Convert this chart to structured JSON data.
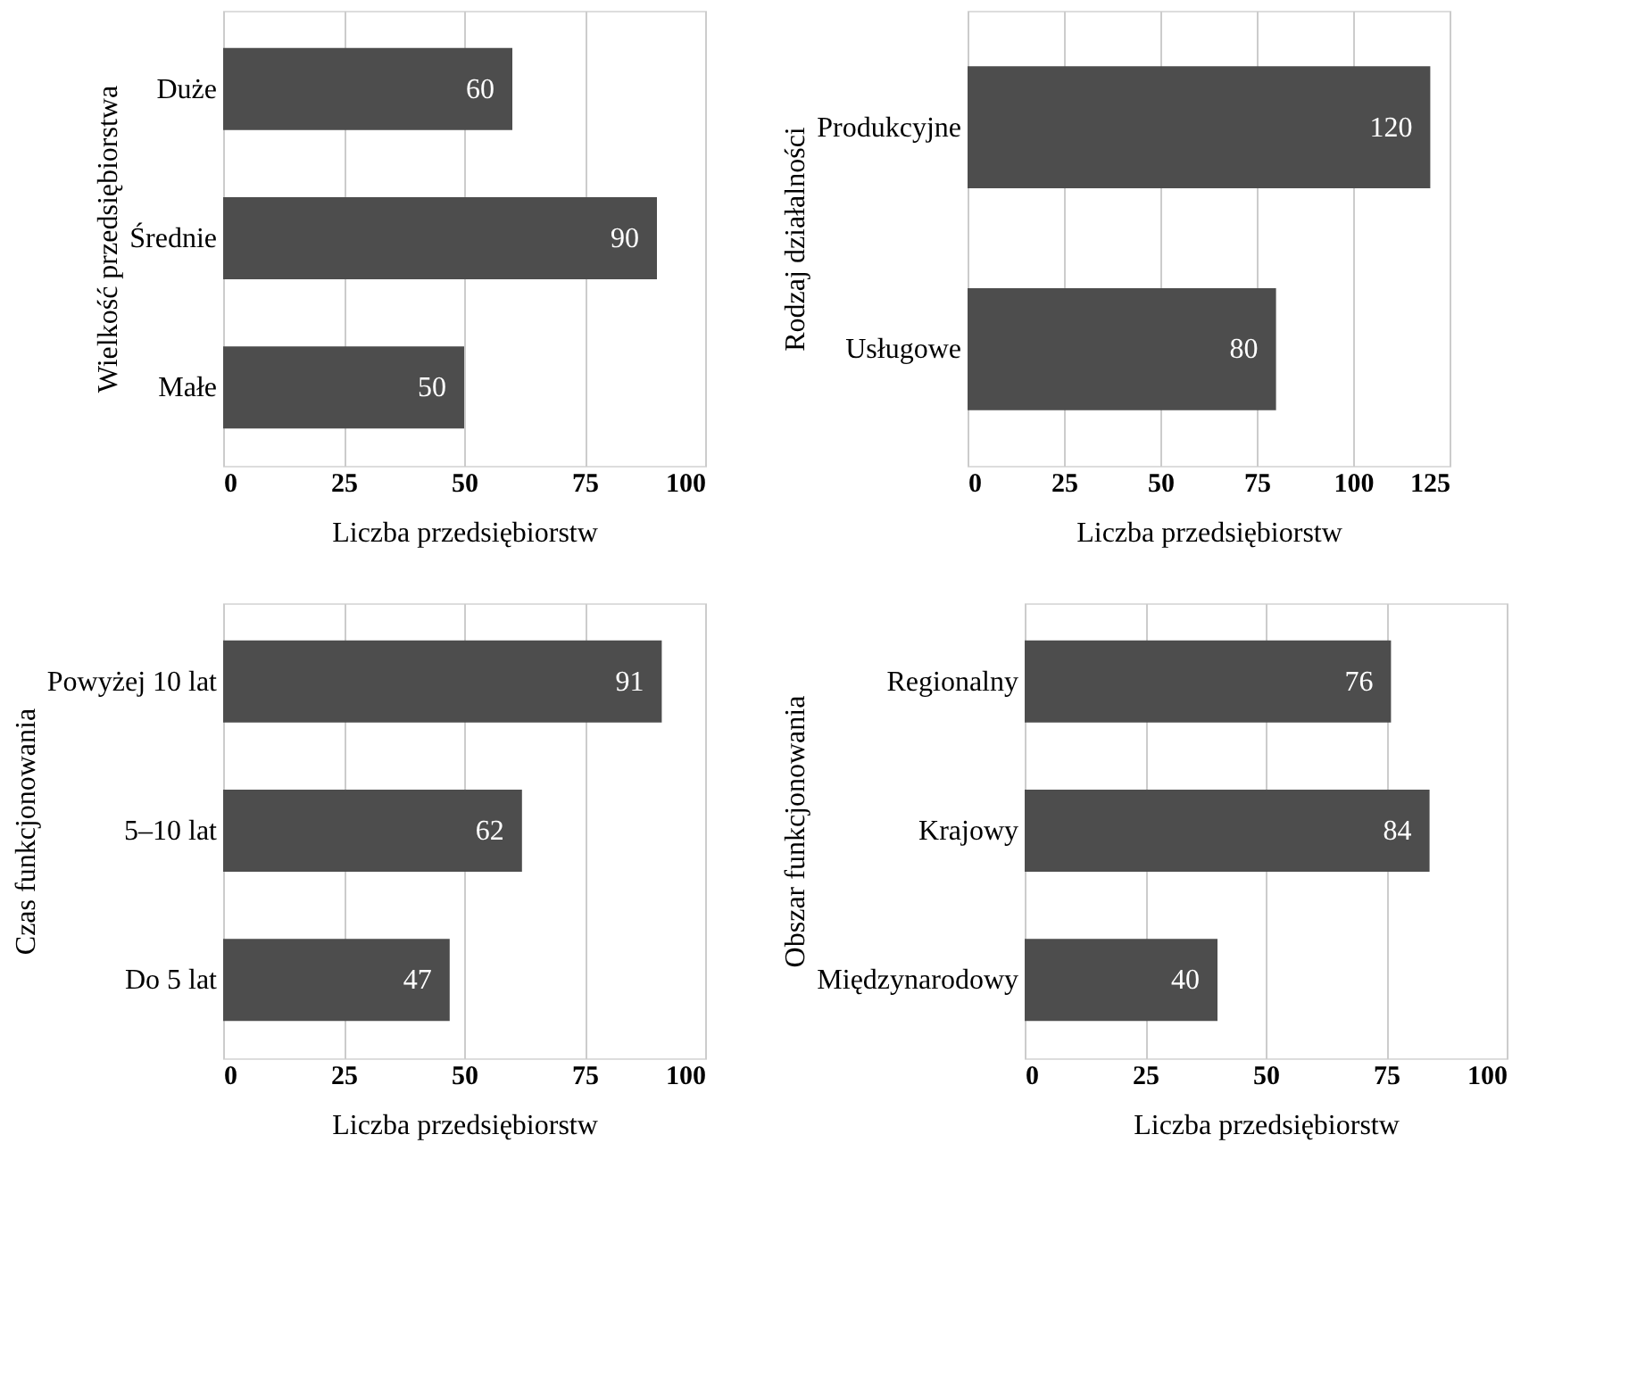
{
  "chart_data": [
    {
      "type": "bar",
      "orientation": "horizontal",
      "ylabel": "Wielkość przedsiębiorstwa",
      "xlabel": "Liczba przedsiębiorstw",
      "categories": [
        "Duże",
        "Średnie",
        "Małe"
      ],
      "values": [
        60,
        90,
        50
      ],
      "color": "#4d4d4d",
      "xlim": [
        0,
        100
      ],
      "xticks": [
        0,
        25,
        50,
        75,
        100
      ],
      "grid": "x",
      "data_labels": true
    },
    {
      "type": "bar",
      "orientation": "horizontal",
      "ylabel": "Rodzaj działalności",
      "xlabel": "Liczba przedsiębiorstw",
      "categories": [
        "Produkcyjne",
        "Usługowe"
      ],
      "values": [
        120,
        80
      ],
      "color": "#4d4d4d",
      "xlim": [
        0,
        125
      ],
      "xticks": [
        0,
        25,
        50,
        75,
        100,
        125
      ],
      "grid": "x",
      "data_labels": true
    },
    {
      "type": "bar",
      "orientation": "horizontal",
      "ylabel": "Czas funkcjonowania",
      "xlabel": "Liczba przedsiębiorstw",
      "categories": [
        "Powyżej 10 lat",
        "5–10 lat",
        "Do 5 lat"
      ],
      "values": [
        91,
        62,
        47
      ],
      "color": "#4d4d4d",
      "xlim": [
        0,
        100
      ],
      "xticks": [
        0,
        25,
        50,
        75,
        100
      ],
      "grid": "x",
      "data_labels": true
    },
    {
      "type": "bar",
      "orientation": "horizontal",
      "ylabel": "Obszar funkcjonowania",
      "xlabel": "Liczba przedsiębiorstw",
      "categories": [
        "Regionalny",
        "Krajowy",
        "Międzynarodowy"
      ],
      "values": [
        76,
        84,
        40
      ],
      "color": "#4d4d4d",
      "xlim": [
        0,
        100
      ],
      "xticks": [
        0,
        25,
        50,
        75,
        100
      ],
      "grid": "x",
      "data_labels": true
    }
  ]
}
